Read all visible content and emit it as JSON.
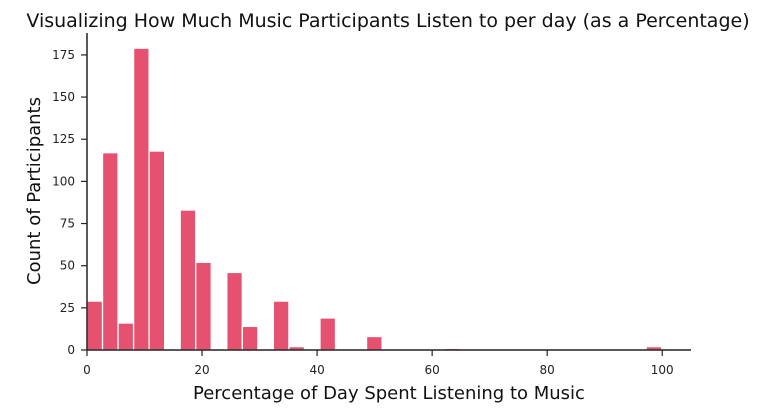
{
  "chart_data": {
    "type": "bar",
    "title": "Visualizing How Much Music Participants Listen to per day (as a Percentage)",
    "xlabel": "Percentage of Day Spent Listening to Music",
    "ylabel": "Count of Participants",
    "xlim": [
      0,
      105
    ],
    "ylim": [
      0,
      188
    ],
    "xticks": [
      "0",
      "20",
      "40",
      "60",
      "80",
      "100"
    ],
    "yticks": [
      "0",
      "25",
      "50",
      "75",
      "100",
      "125",
      "150",
      "175"
    ],
    "grid": false,
    "bar_color": "#e5516f",
    "edge_color": "#ffffff",
    "bins": [
      {
        "x0": 0,
        "x1": 2.7,
        "value": 29
      },
      {
        "x0": 2.7,
        "x1": 5.4,
        "value": 117
      },
      {
        "x0": 5.4,
        "x1": 8.1,
        "value": 16
      },
      {
        "x0": 8.1,
        "x1": 10.8,
        "value": 179
      },
      {
        "x0": 10.8,
        "x1": 13.5,
        "value": 118
      },
      {
        "x0": 16.2,
        "x1": 18.9,
        "value": 83
      },
      {
        "x0": 18.9,
        "x1": 21.6,
        "value": 52
      },
      {
        "x0": 24.3,
        "x1": 27.0,
        "value": 46
      },
      {
        "x0": 27.0,
        "x1": 29.7,
        "value": 14
      },
      {
        "x0": 32.4,
        "x1": 35.1,
        "value": 29
      },
      {
        "x0": 35.1,
        "x1": 37.8,
        "value": 2
      },
      {
        "x0": 40.5,
        "x1": 43.2,
        "value": 19
      },
      {
        "x0": 48.6,
        "x1": 51.3,
        "value": 8
      },
      {
        "x0": 62.1,
        "x1": 64.8,
        "value": 1
      },
      {
        "x0": 97.2,
        "x1": 99.9,
        "value": 2
      }
    ]
  }
}
